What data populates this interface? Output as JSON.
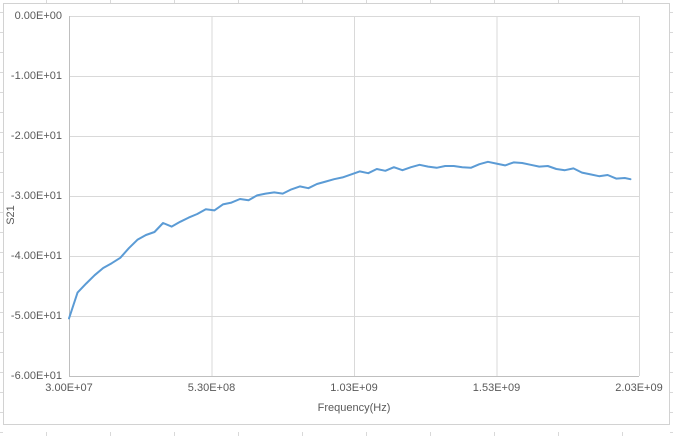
{
  "colors": {
    "series_line": "#5B9BD5",
    "gridline": "#D9D9D9",
    "axis_line": "#BFBFBF",
    "plot_border": "#D9D9D9",
    "chart_border": "#D2D2D2",
    "label_text": "#595959",
    "background": "#FFFFFF"
  },
  "chart_data": {
    "type": "line",
    "title": "",
    "xlabel": "Frequency(Hz)",
    "ylabel": "S21",
    "x_tick_labels": [
      "3.00E+07",
      "5.30E+08",
      "1.03E+09",
      "1.53E+09",
      "2.03E+09"
    ],
    "y_tick_labels": [
      "0.00E+00",
      "-1.00E+01",
      "-2.00E+01",
      "-3.00E+01",
      "-4.00E+01",
      "-5.00E+01",
      "-6.00E+01"
    ],
    "xlim": [
      30000000.0,
      2030000000.0
    ],
    "ylim": [
      -60,
      0
    ],
    "grid": true,
    "legend": "none",
    "series": [
      {
        "name": "S21",
        "color": "#5B9BD5",
        "x": [
          30000000.0,
          60000000.0,
          90000000.0,
          120000000.0,
          150000000.0,
          180000000.0,
          210000000.0,
          240000000.0,
          270000000.0,
          300000000.0,
          330000000.0,
          360000000.0,
          390000000.0,
          420000000.0,
          450000000.0,
          480000000.0,
          510000000.0,
          540000000.0,
          570000000.0,
          600000000.0,
          630000000.0,
          660000000.0,
          690000000.0,
          720000000.0,
          750000000.0,
          780000000.0,
          810000000.0,
          840000000.0,
          870000000.0,
          900000000.0,
          930000000.0,
          960000000.0,
          990000000.0,
          1020000000.0,
          1050000000.0,
          1080000000.0,
          1110000000.0,
          1140000000.0,
          1170000000.0,
          1200000000.0,
          1230000000.0,
          1260000000.0,
          1290000000.0,
          1320000000.0,
          1350000000.0,
          1380000000.0,
          1410000000.0,
          1440000000.0,
          1470000000.0,
          1500000000.0,
          1530000000.0,
          1560000000.0,
          1590000000.0,
          1620000000.0,
          1650000000.0,
          1680000000.0,
          1710000000.0,
          1740000000.0,
          1770000000.0,
          1800000000.0,
          1830000000.0,
          1860000000.0,
          1890000000.0,
          1920000000.0,
          1950000000.0,
          1980000000.0,
          2000000000.0
        ],
        "y": [
          -50.4,
          -46.1,
          -44.6,
          -43.2,
          -42.0,
          -41.2,
          -40.3,
          -38.7,
          -37.3,
          -36.5,
          -36.0,
          -34.5,
          -35.1,
          -34.3,
          -33.6,
          -33.0,
          -32.2,
          -32.4,
          -31.4,
          -31.1,
          -30.5,
          -30.7,
          -29.9,
          -29.6,
          -29.4,
          -29.6,
          -28.9,
          -28.4,
          -28.7,
          -28.0,
          -27.6,
          -27.2,
          -26.9,
          -26.4,
          -25.9,
          -26.2,
          -25.5,
          -25.8,
          -25.2,
          -25.7,
          -25.2,
          -24.8,
          -25.1,
          -25.3,
          -25.0,
          -25.0,
          -25.2,
          -25.3,
          -24.7,
          -24.3,
          -24.6,
          -24.9,
          -24.4,
          -24.5,
          -24.8,
          -25.1,
          -25.0,
          -25.5,
          -25.7,
          -25.4,
          -26.1,
          -26.4,
          -26.7,
          -26.5,
          -27.1,
          -27.0,
          -27.2
        ]
      }
    ]
  }
}
